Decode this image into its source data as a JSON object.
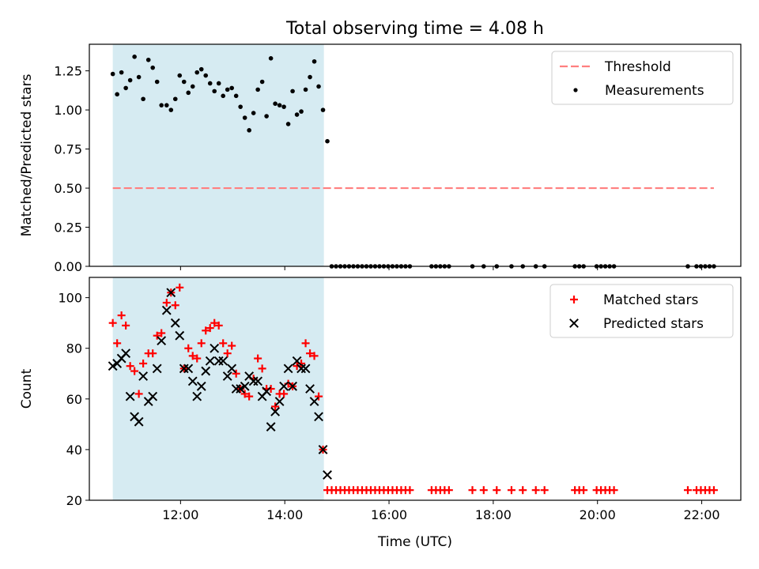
{
  "figure_title": "Total observing time = 4.08 h",
  "colors": {
    "shade": "#add8e6",
    "threshold": "#ff7f7f",
    "measurement": "#000000",
    "matched": "#ff0000",
    "predicted": "#000000"
  },
  "chart_data": [
    {
      "type": "scatter",
      "ylabel": "Matched/Predicted stars",
      "ylim": [
        0,
        1.42
      ],
      "yticks": [
        "0.00",
        "0.25",
        "0.50",
        "0.75",
        "1.00",
        "1.25"
      ],
      "xlim": [
        "10:15",
        "22:45"
      ],
      "grid": false,
      "legend_position": "upper-right",
      "shaded_interval": [
        "10:42",
        "14:45"
      ],
      "threshold": {
        "name": "Threshold",
        "value": 0.5,
        "x_range": [
          "10:42",
          "22:14"
        ]
      },
      "series": [
        {
          "name": "Measurements",
          "points": [
            [
              "10:42",
              1.23
            ],
            [
              "10:47",
              1.1
            ],
            [
              "10:52",
              1.24
            ],
            [
              "10:57",
              1.14
            ],
            [
              "11:02",
              1.19
            ],
            [
              "11:07",
              1.34
            ],
            [
              "11:12",
              1.21
            ],
            [
              "11:17",
              1.07
            ],
            [
              "11:23",
              1.32
            ],
            [
              "11:28",
              1.27
            ],
            [
              "11:33",
              1.18
            ],
            [
              "11:38",
              1.03
            ],
            [
              "11:44",
              1.03
            ],
            [
              "11:49",
              1.0
            ],
            [
              "11:54",
              1.07
            ],
            [
              "11:59",
              1.22
            ],
            [
              "12:04",
              1.18
            ],
            [
              "12:09",
              1.11
            ],
            [
              "12:14",
              1.15
            ],
            [
              "12:19",
              1.24
            ],
            [
              "12:24",
              1.26
            ],
            [
              "12:29",
              1.22
            ],
            [
              "12:34",
              1.17
            ],
            [
              "12:39",
              1.12
            ],
            [
              "12:44",
              1.17
            ],
            [
              "12:49",
              1.09
            ],
            [
              "12:54",
              1.13
            ],
            [
              "12:59",
              1.14
            ],
            [
              "13:04",
              1.09
            ],
            [
              "13:09",
              1.02
            ],
            [
              "13:14",
              0.95
            ],
            [
              "13:19",
              0.87
            ],
            [
              "13:24",
              0.98
            ],
            [
              "13:29",
              1.13
            ],
            [
              "13:34",
              1.18
            ],
            [
              "13:39",
              0.96
            ],
            [
              "13:44",
              1.33
            ],
            [
              "13:49",
              1.04
            ],
            [
              "13:54",
              1.03
            ],
            [
              "13:59",
              1.02
            ],
            [
              "14:04",
              0.91
            ],
            [
              "14:09",
              1.12
            ],
            [
              "14:14",
              0.97
            ],
            [
              "14:19",
              0.99
            ],
            [
              "14:24",
              1.13
            ],
            [
              "14:29",
              1.21
            ],
            [
              "14:34",
              1.31
            ],
            [
              "14:39",
              1.15
            ],
            [
              "14:44",
              1.0
            ],
            [
              "14:49",
              0.8
            ],
            [
              "14:54",
              0
            ],
            [
              "14:59",
              0
            ],
            [
              "15:04",
              0
            ],
            [
              "15:09",
              0
            ],
            [
              "15:14",
              0
            ],
            [
              "15:19",
              0
            ],
            [
              "15:24",
              0
            ],
            [
              "15:29",
              0
            ],
            [
              "15:34",
              0
            ],
            [
              "15:39",
              0
            ],
            [
              "15:44",
              0
            ],
            [
              "15:49",
              0
            ],
            [
              "15:54",
              0
            ],
            [
              "15:59",
              0
            ],
            [
              "16:04",
              0
            ],
            [
              "16:09",
              0
            ],
            [
              "16:14",
              0
            ],
            [
              "16:19",
              0
            ],
            [
              "16:24",
              0
            ],
            [
              "16:49",
              0
            ],
            [
              "16:54",
              0
            ],
            [
              "16:59",
              0
            ],
            [
              "17:04",
              0
            ],
            [
              "17:09",
              0
            ],
            [
              "17:36",
              0
            ],
            [
              "17:49",
              0
            ],
            [
              "18:04",
              0
            ],
            [
              "18:21",
              0
            ],
            [
              "18:34",
              0
            ],
            [
              "18:49",
              0
            ],
            [
              "18:59",
              0
            ],
            [
              "19:34",
              0
            ],
            [
              "19:39",
              0
            ],
            [
              "19:44",
              0
            ],
            [
              "19:59",
              0
            ],
            [
              "20:04",
              0
            ],
            [
              "20:09",
              0
            ],
            [
              "20:14",
              0
            ],
            [
              "20:19",
              0
            ],
            [
              "21:44",
              0
            ],
            [
              "21:54",
              0
            ],
            [
              "21:59",
              0
            ],
            [
              "22:04",
              0
            ],
            [
              "22:09",
              0
            ],
            [
              "22:14",
              0
            ]
          ]
        }
      ]
    },
    {
      "type": "scatter",
      "xlabel": "Time (UTC)",
      "ylabel": "Count",
      "ylim": [
        20,
        108
      ],
      "yticks": [
        "20",
        "40",
        "60",
        "80",
        "100"
      ],
      "xlim": [
        "10:15",
        "22:45"
      ],
      "xticks": [
        "12:00",
        "14:00",
        "16:00",
        "18:00",
        "20:00",
        "22:00"
      ],
      "grid": false,
      "legend_position": "upper-right",
      "shaded_interval": [
        "10:42",
        "14:45"
      ],
      "series": [
        {
          "name": "Matched stars",
          "points": [
            [
              "10:42",
              90
            ],
            [
              "10:47",
              82
            ],
            [
              "10:52",
              93
            ],
            [
              "10:57",
              89
            ],
            [
              "11:02",
              73
            ],
            [
              "11:07",
              71
            ],
            [
              "11:12",
              62
            ],
            [
              "11:17",
              74
            ],
            [
              "11:23",
              78
            ],
            [
              "11:28",
              78
            ],
            [
              "11:33",
              85
            ],
            [
              "11:38",
              86
            ],
            [
              "11:44",
              98
            ],
            [
              "11:49",
              102
            ],
            [
              "11:54",
              97
            ],
            [
              "11:59",
              104
            ],
            [
              "12:04",
              72
            ],
            [
              "12:09",
              80
            ],
            [
              "12:14",
              77
            ],
            [
              "12:19",
              76
            ],
            [
              "12:24",
              82
            ],
            [
              "12:29",
              87
            ],
            [
              "12:34",
              88
            ],
            [
              "12:39",
              90
            ],
            [
              "12:44",
              89
            ],
            [
              "12:49",
              82
            ],
            [
              "12:54",
              78
            ],
            [
              "12:59",
              81
            ],
            [
              "13:04",
              70
            ],
            [
              "13:09",
              64
            ],
            [
              "13:14",
              62
            ],
            [
              "13:19",
              61
            ],
            [
              "13:24",
              68
            ],
            [
              "13:29",
              76
            ],
            [
              "13:34",
              72
            ],
            [
              "13:39",
              64
            ],
            [
              "13:44",
              64
            ],
            [
              "13:49",
              57
            ],
            [
              "13:54",
              62
            ],
            [
              "13:59",
              62
            ],
            [
              "14:04",
              66
            ],
            [
              "14:09",
              65
            ],
            [
              "14:14",
              73
            ],
            [
              "14:19",
              74
            ],
            [
              "14:24",
              82
            ],
            [
              "14:29",
              78
            ],
            [
              "14:34",
              77
            ],
            [
              "14:39",
              61
            ],
            [
              "14:44",
              40
            ],
            [
              "14:49",
              24
            ],
            [
              "14:54",
              24
            ],
            [
              "14:59",
              24
            ],
            [
              "15:04",
              24
            ],
            [
              "15:09",
              24
            ],
            [
              "15:14",
              24
            ],
            [
              "15:19",
              24
            ],
            [
              "15:24",
              24
            ],
            [
              "15:29",
              24
            ],
            [
              "15:34",
              24
            ],
            [
              "15:39",
              24
            ],
            [
              "15:44",
              24
            ],
            [
              "15:49",
              24
            ],
            [
              "15:54",
              24
            ],
            [
              "15:59",
              24
            ],
            [
              "16:04",
              24
            ],
            [
              "16:09",
              24
            ],
            [
              "16:14",
              24
            ],
            [
              "16:19",
              24
            ],
            [
              "16:24",
              24
            ],
            [
              "16:49",
              24
            ],
            [
              "16:54",
              24
            ],
            [
              "16:59",
              24
            ],
            [
              "17:04",
              24
            ],
            [
              "17:09",
              24
            ],
            [
              "17:36",
              24
            ],
            [
              "17:49",
              24
            ],
            [
              "18:04",
              24
            ],
            [
              "18:21",
              24
            ],
            [
              "18:34",
              24
            ],
            [
              "18:49",
              24
            ],
            [
              "18:59",
              24
            ],
            [
              "19:34",
              24
            ],
            [
              "19:39",
              24
            ],
            [
              "19:44",
              24
            ],
            [
              "19:59",
              24
            ],
            [
              "20:04",
              24
            ],
            [
              "20:09",
              24
            ],
            [
              "20:14",
              24
            ],
            [
              "20:19",
              24
            ],
            [
              "21:44",
              24
            ],
            [
              "21:54",
              24
            ],
            [
              "21:59",
              24
            ],
            [
              "22:04",
              24
            ],
            [
              "22:09",
              24
            ],
            [
              "22:14",
              24
            ]
          ]
        },
        {
          "name": "Predicted stars",
          "points": [
            [
              "10:42",
              73
            ],
            [
              "10:47",
              74
            ],
            [
              "10:52",
              76
            ],
            [
              "10:57",
              78
            ],
            [
              "11:02",
              61
            ],
            [
              "11:07",
              53
            ],
            [
              "11:12",
              51
            ],
            [
              "11:17",
              69
            ],
            [
              "11:23",
              59
            ],
            [
              "11:28",
              61
            ],
            [
              "11:33",
              72
            ],
            [
              "11:38",
              83
            ],
            [
              "11:44",
              95
            ],
            [
              "11:49",
              102
            ],
            [
              "11:54",
              90
            ],
            [
              "11:59",
              85
            ],
            [
              "12:04",
              72
            ],
            [
              "12:09",
              72
            ],
            [
              "12:14",
              67
            ],
            [
              "12:19",
              61
            ],
            [
              "12:24",
              65
            ],
            [
              "12:29",
              71
            ],
            [
              "12:34",
              75
            ],
            [
              "12:39",
              80
            ],
            [
              "12:44",
              75
            ],
            [
              "12:49",
              75
            ],
            [
              "12:54",
              69
            ],
            [
              "12:59",
              72
            ],
            [
              "13:04",
              64
            ],
            [
              "13:09",
              64
            ],
            [
              "13:14",
              65
            ],
            [
              "13:19",
              69
            ],
            [
              "13:24",
              67
            ],
            [
              "13:29",
              67
            ],
            [
              "13:34",
              61
            ],
            [
              "13:39",
              63
            ],
            [
              "13:44",
              49
            ],
            [
              "13:49",
              55
            ],
            [
              "13:54",
              59
            ],
            [
              "13:59",
              65
            ],
            [
              "14:04",
              72
            ],
            [
              "14:09",
              65
            ],
            [
              "14:14",
              75
            ],
            [
              "14:19",
              72
            ],
            [
              "14:24",
              72
            ],
            [
              "14:29",
              64
            ],
            [
              "14:34",
              59
            ],
            [
              "14:39",
              53
            ],
            [
              "14:44",
              40
            ],
            [
              "14:49",
              30
            ]
          ]
        }
      ]
    }
  ]
}
